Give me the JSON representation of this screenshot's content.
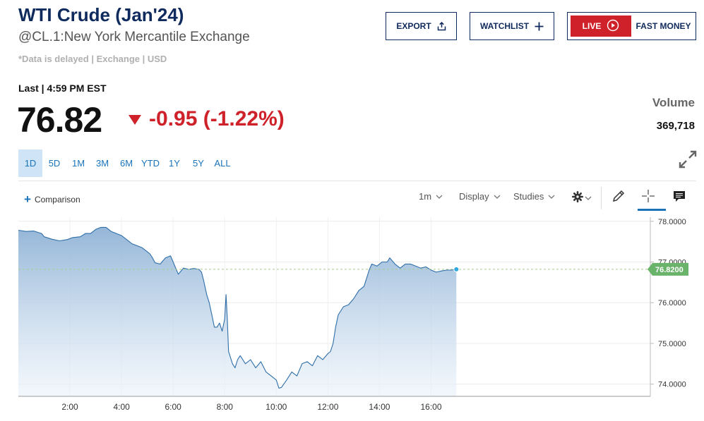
{
  "header": {
    "title": "WTI Crude (Jan'24)",
    "subtitle": "@CL.1:New York Mercantile Exchange",
    "delayed_note": "*Data is delayed | Exchange | USD"
  },
  "buttons": {
    "export_label": "EXPORT",
    "watchlist_label": "WATCHLIST",
    "live_label": "LIVE",
    "fast_money_label": "FAST MONEY"
  },
  "quote": {
    "last_label": "Last | 4:59 PM EST",
    "price": "76.82",
    "change": "-0.95 (-1.22%)",
    "volume_label": "Volume",
    "volume_value": "369,718"
  },
  "ranges": [
    "1D",
    "5D",
    "1M",
    "3M",
    "6M",
    "YTD",
    "1Y",
    "5Y",
    "ALL"
  ],
  "active_range": "1D",
  "toolbar": {
    "comparison_label": "Comparison",
    "interval_label": "1m",
    "display_label": "Display",
    "studies_label": "Studies"
  },
  "colors": {
    "brand_navy": "#0f2a5c",
    "live_red": "#cf2129",
    "negative_red": "#cf2129",
    "line_blue": "#2f6fa8",
    "price_tag_green": "#6ab36a",
    "active_range_bg": "#cfe4f7"
  },
  "icons": {
    "export": "share-up-icon",
    "watchlist": "plus-icon",
    "live": "play-circle-icon",
    "down": "down-triangle-icon",
    "expand": "expand-arrows-icon",
    "settings": "gear-icon",
    "draw": "pencil-icon",
    "crosshair": "crosshair-icon",
    "comment": "comment-icon"
  },
  "chart_data": {
    "type": "area",
    "x_start_hour": 0,
    "x_end_hour": 24.5,
    "x_ticks": [
      {
        "hour": 2,
        "label": "2:00"
      },
      {
        "hour": 4,
        "label": "4:00"
      },
      {
        "hour": 6,
        "label": "6:00"
      },
      {
        "hour": 8,
        "label": "8:00"
      },
      {
        "hour": 10,
        "label": "10:00"
      },
      {
        "hour": 12,
        "label": "12:00"
      },
      {
        "hour": 14,
        "label": "14:00"
      },
      {
        "hour": 16,
        "label": "16:00"
      }
    ],
    "ylim": [
      73.7,
      78.1
    ],
    "y_ticks": [
      "74.0000",
      "75.0000",
      "76.0000",
      "77.0000",
      "78.0000"
    ],
    "last_price_label": "76.8200",
    "last_value": 76.82,
    "grid": true,
    "series": [
      {
        "points": [
          [
            0.0,
            77.78
          ],
          [
            0.3,
            77.75
          ],
          [
            0.6,
            77.76
          ],
          [
            0.9,
            77.7
          ],
          [
            1.0,
            77.62
          ],
          [
            1.3,
            77.56
          ],
          [
            1.6,
            77.52
          ],
          [
            1.9,
            77.55
          ],
          [
            2.1,
            77.6
          ],
          [
            2.4,
            77.62
          ],
          [
            2.6,
            77.7
          ],
          [
            2.8,
            77.7
          ],
          [
            3.0,
            77.8
          ],
          [
            3.2,
            77.85
          ],
          [
            3.4,
            77.85
          ],
          [
            3.6,
            77.75
          ],
          [
            3.8,
            77.7
          ],
          [
            4.0,
            77.65
          ],
          [
            4.2,
            77.55
          ],
          [
            4.4,
            77.45
          ],
          [
            4.6,
            77.4
          ],
          [
            4.8,
            77.35
          ],
          [
            5.0,
            77.25
          ],
          [
            5.1,
            77.2
          ],
          [
            5.2,
            77.1
          ],
          [
            5.3,
            76.98
          ],
          [
            5.5,
            76.95
          ],
          [
            5.7,
            77.1
          ],
          [
            5.9,
            77.15
          ],
          [
            6.0,
            77.0
          ],
          [
            6.1,
            76.85
          ],
          [
            6.2,
            76.7
          ],
          [
            6.4,
            76.85
          ],
          [
            6.6,
            76.82
          ],
          [
            6.8,
            76.84
          ],
          [
            7.0,
            76.82
          ],
          [
            7.1,
            76.75
          ],
          [
            7.2,
            76.5
          ],
          [
            7.3,
            76.2
          ],
          [
            7.4,
            76.0
          ],
          [
            7.5,
            75.7
          ],
          [
            7.6,
            75.4
          ],
          [
            7.7,
            75.4
          ],
          [
            7.8,
            75.5
          ],
          [
            7.9,
            75.3
          ],
          [
            8.0,
            75.6
          ],
          [
            8.05,
            76.2
          ],
          [
            8.1,
            75.6
          ],
          [
            8.15,
            74.8
          ],
          [
            8.2,
            74.7
          ],
          [
            8.3,
            74.5
          ],
          [
            8.4,
            74.4
          ],
          [
            8.5,
            74.6
          ],
          [
            8.6,
            74.7
          ],
          [
            8.8,
            74.5
          ],
          [
            9.0,
            74.6
          ],
          [
            9.2,
            74.4
          ],
          [
            9.4,
            74.55
          ],
          [
            9.6,
            74.3
          ],
          [
            9.8,
            74.2
          ],
          [
            10.0,
            74.1
          ],
          [
            10.1,
            73.9
          ],
          [
            10.2,
            73.92
          ],
          [
            10.4,
            74.1
          ],
          [
            10.6,
            74.3
          ],
          [
            10.8,
            74.2
          ],
          [
            11.0,
            74.5
          ],
          [
            11.2,
            74.55
          ],
          [
            11.4,
            74.45
          ],
          [
            11.6,
            74.7
          ],
          [
            11.8,
            74.6
          ],
          [
            12.0,
            74.75
          ],
          [
            12.1,
            74.8
          ],
          [
            12.2,
            75.0
          ],
          [
            12.3,
            75.4
          ],
          [
            12.4,
            75.7
          ],
          [
            12.6,
            75.9
          ],
          [
            12.8,
            75.95
          ],
          [
            13.0,
            76.1
          ],
          [
            13.2,
            76.3
          ],
          [
            13.4,
            76.4
          ],
          [
            13.5,
            76.6
          ],
          [
            13.6,
            76.8
          ],
          [
            13.7,
            76.95
          ],
          [
            13.9,
            76.9
          ],
          [
            14.1,
            77.0
          ],
          [
            14.3,
            77.0
          ],
          [
            14.4,
            77.1
          ],
          [
            14.6,
            76.95
          ],
          [
            14.8,
            76.85
          ],
          [
            15.0,
            76.95
          ],
          [
            15.2,
            76.95
          ],
          [
            15.4,
            76.9
          ],
          [
            15.6,
            76.85
          ],
          [
            15.8,
            76.88
          ],
          [
            16.0,
            76.8
          ],
          [
            16.2,
            76.75
          ],
          [
            16.4,
            76.78
          ],
          [
            16.6,
            76.8
          ],
          [
            16.8,
            76.8
          ],
          [
            16.98,
            76.82
          ]
        ]
      }
    ]
  }
}
